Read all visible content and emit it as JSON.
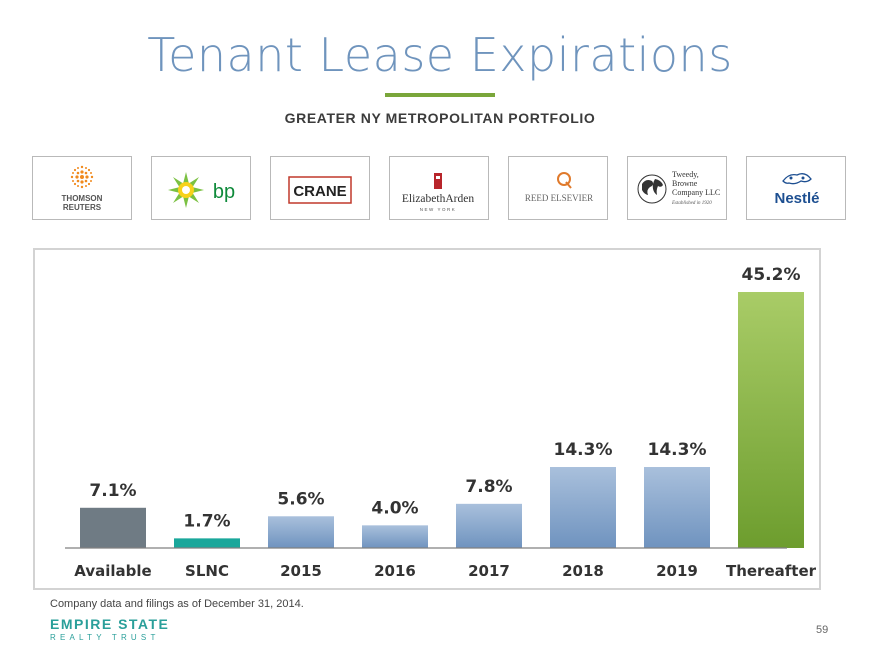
{
  "header": {
    "title": "Tenant Lease Expirations",
    "subtitle": "GREATER NY METROPOLITAN PORTFOLIO"
  },
  "logos": [
    {
      "name": "thomson-reuters",
      "lines": [
        "THOMSON",
        "REUTERS"
      ]
    },
    {
      "name": "bp",
      "text": "bp"
    },
    {
      "name": "crane",
      "text": "CRANE"
    },
    {
      "name": "elizabeth-arden",
      "text": "ElizabethArden",
      "sub": "NEW YORK"
    },
    {
      "name": "reed-elsevier",
      "text": "REED ELSEVIER"
    },
    {
      "name": "tweedy-browne",
      "lines": [
        "Tweedy,",
        "Browne",
        "Company LLC"
      ],
      "sub": "Established in 1920"
    },
    {
      "name": "nestle",
      "text": "Nestlé"
    }
  ],
  "chart_data": {
    "type": "bar",
    "categories": [
      "Available",
      "SLNC",
      "2015",
      "2016",
      "2017",
      "2018",
      "2019",
      "Thereafter"
    ],
    "values": [
      7.1,
      1.7,
      5.6,
      4.0,
      7.8,
      14.3,
      14.3,
      45.2
    ],
    "labels": [
      "7.1%",
      "1.7%",
      "5.6%",
      "4.0%",
      "7.8%",
      "14.3%",
      "14.3%",
      "45.2%"
    ],
    "ylim": [
      0,
      45.2
    ],
    "grid": false,
    "colors": {
      "available": "#6f7b84",
      "slnc": "#1aa79b",
      "blue_top": "#a9c0dc",
      "blue_bottom": "#6f93bf",
      "green_top": "#a9cc67",
      "green_bottom": "#6d9d2e"
    }
  },
  "footer": {
    "note": "Company data and filings as of December 31, 2014.",
    "brand_top": "EMPIRE STATE",
    "brand_bottom": "REALTY TRUST",
    "page": "59"
  }
}
